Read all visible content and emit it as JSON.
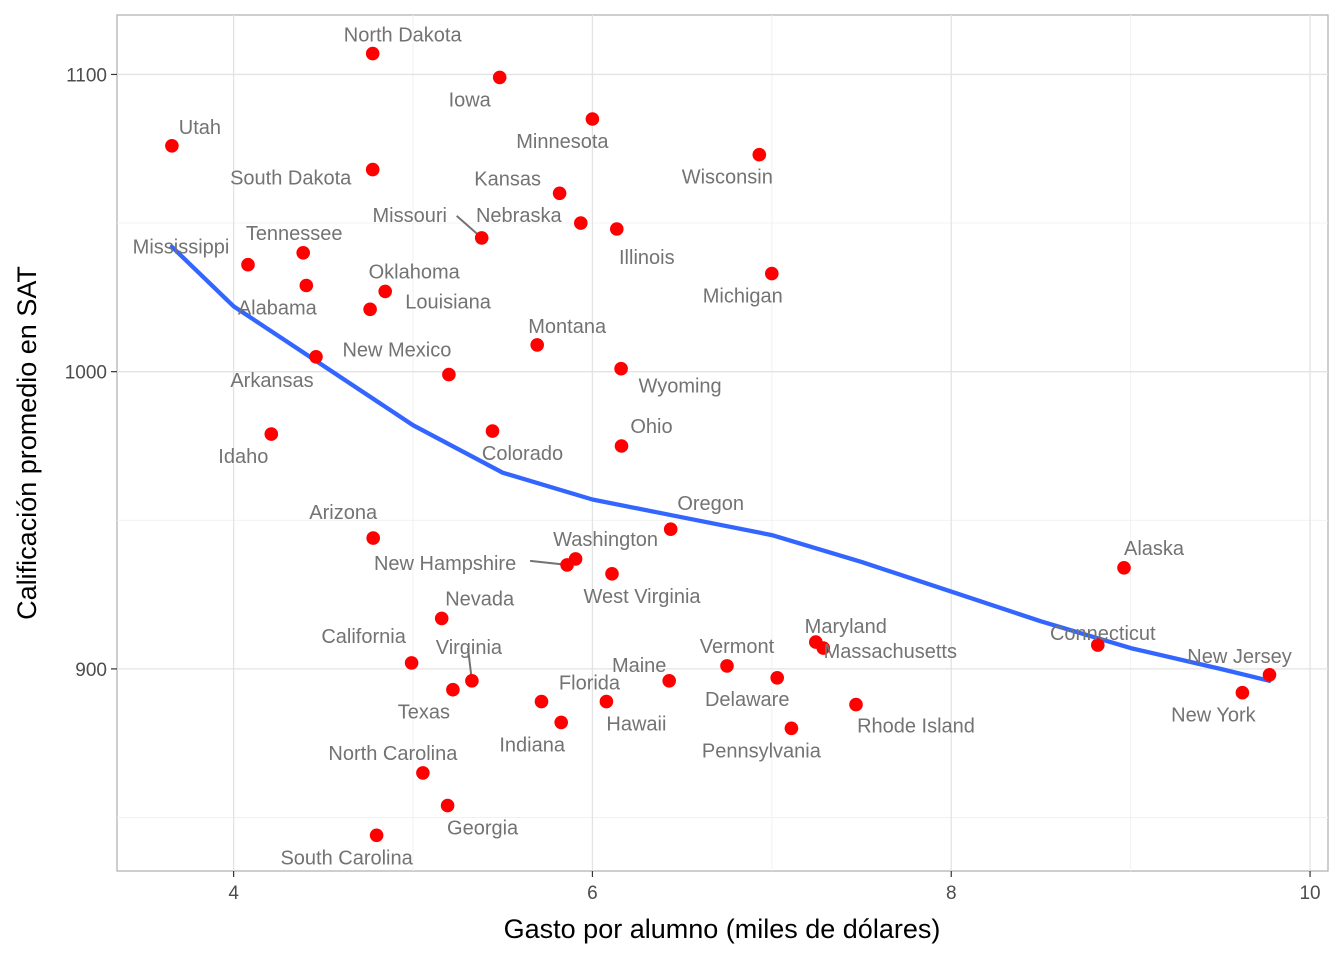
{
  "chart_data": {
    "type": "scatter",
    "xlabel": "Gasto por alumno (miles de dólares)",
    "ylabel": "Calificación promedio en SAT",
    "xlim": [
      3.35,
      10.1
    ],
    "ylim": [
      832,
      1120
    ],
    "x_ticks": [
      4,
      6,
      8,
      10
    ],
    "y_ticks": [
      900,
      1000,
      1100
    ],
    "grid": true,
    "point_color": "#ff0000",
    "smooth_color": "#3366ff",
    "points": [
      {
        "label": "North Dakota",
        "x": 4.775,
        "y": 1107
      },
      {
        "label": "Iowa",
        "x": 5.483,
        "y": 1099
      },
      {
        "label": "Utah",
        "x": 3.656,
        "y": 1076
      },
      {
        "label": "Minnesota",
        "x": 6.0,
        "y": 1085
      },
      {
        "label": "Wisconsin",
        "x": 6.93,
        "y": 1073
      },
      {
        "label": "South Dakota",
        "x": 4.775,
        "y": 1068
      },
      {
        "label": "Kansas",
        "x": 5.817,
        "y": 1060
      },
      {
        "label": "Nebraska",
        "x": 5.935,
        "y": 1050
      },
      {
        "label": "Illinois",
        "x": 6.136,
        "y": 1048
      },
      {
        "label": "Missouri",
        "x": 5.383,
        "y": 1045
      },
      {
        "label": "Tennessee",
        "x": 4.388,
        "y": 1040
      },
      {
        "label": "Mississippi",
        "x": 4.08,
        "y": 1036
      },
      {
        "label": "Michigan",
        "x": 7.0,
        "y": 1033
      },
      {
        "label": "Alabama",
        "x": 4.405,
        "y": 1029
      },
      {
        "label": "Oklahoma",
        "x": 4.845,
        "y": 1027
      },
      {
        "label": "Louisiana",
        "x": 4.761,
        "y": 1021
      },
      {
        "label": "Montana",
        "x": 5.692,
        "y": 1009
      },
      {
        "label": "Arkansas",
        "x": 4.459,
        "y": 1005
      },
      {
        "label": "Wyoming",
        "x": 6.16,
        "y": 1001
      },
      {
        "label": "New Mexico",
        "x": 5.2,
        "y": 999
      },
      {
        "label": "Idaho",
        "x": 4.21,
        "y": 979
      },
      {
        "label": "Colorado",
        "x": 5.443,
        "y": 980
      },
      {
        "label": "Ohio",
        "x": 6.162,
        "y": 975
      },
      {
        "label": "Oregon",
        "x": 6.436,
        "y": 947
      },
      {
        "label": "Arizona",
        "x": 4.778,
        "y": 944
      },
      {
        "label": "Washington",
        "x": 5.906,
        "y": 937
      },
      {
        "label": "New Hampshire",
        "x": 5.859,
        "y": 935
      },
      {
        "label": "Alaska",
        "x": 8.963,
        "y": 934
      },
      {
        "label": "West Virginia",
        "x": 6.109,
        "y": 932
      },
      {
        "label": "Nevada",
        "x": 5.16,
        "y": 917
      },
      {
        "label": "Maryland",
        "x": 7.245,
        "y": 909
      },
      {
        "label": "Connecticut",
        "x": 8.817,
        "y": 908
      },
      {
        "label": "Massachusetts",
        "x": 7.287,
        "y": 907
      },
      {
        "label": "California",
        "x": 4.992,
        "y": 902
      },
      {
        "label": "Vermont",
        "x": 6.75,
        "y": 901
      },
      {
        "label": "New Jersey",
        "x": 9.774,
        "y": 898
      },
      {
        "label": "Delaware",
        "x": 7.03,
        "y": 897
      },
      {
        "label": "Maine",
        "x": 6.428,
        "y": 896
      },
      {
        "label": "Virginia",
        "x": 5.328,
        "y": 896
      },
      {
        "label": "Texas",
        "x": 5.222,
        "y": 893
      },
      {
        "label": "New York",
        "x": 9.623,
        "y": 892
      },
      {
        "label": "Florida",
        "x": 5.716,
        "y": 889
      },
      {
        "label": "Hawaii",
        "x": 6.078,
        "y": 889
      },
      {
        "label": "Rhode Island",
        "x": 7.469,
        "y": 888
      },
      {
        "label": "Indiana",
        "x": 5.826,
        "y": 882
      },
      {
        "label": "Pennsylvania",
        "x": 7.109,
        "y": 880
      },
      {
        "label": "North Carolina",
        "x": 5.055,
        "y": 865
      },
      {
        "label": "Georgia",
        "x": 5.193,
        "y": 854
      },
      {
        "label": "South Carolina",
        "x": 4.797,
        "y": 844
      }
    ],
    "smooth_line": [
      {
        "x": 3.656,
        "y": 1042
      },
      {
        "x": 4.0,
        "y": 1022
      },
      {
        "x": 4.5,
        "y": 1002
      },
      {
        "x": 5.0,
        "y": 982
      },
      {
        "x": 5.5,
        "y": 966
      },
      {
        "x": 6.0,
        "y": 957
      },
      {
        "x": 6.5,
        "y": 951
      },
      {
        "x": 7.0,
        "y": 945
      },
      {
        "x": 7.5,
        "y": 936
      },
      {
        "x": 8.0,
        "y": 926
      },
      {
        "x": 8.5,
        "y": 916
      },
      {
        "x": 9.0,
        "y": 907
      },
      {
        "x": 9.5,
        "y": 900
      },
      {
        "x": 9.774,
        "y": 896
      }
    ]
  }
}
